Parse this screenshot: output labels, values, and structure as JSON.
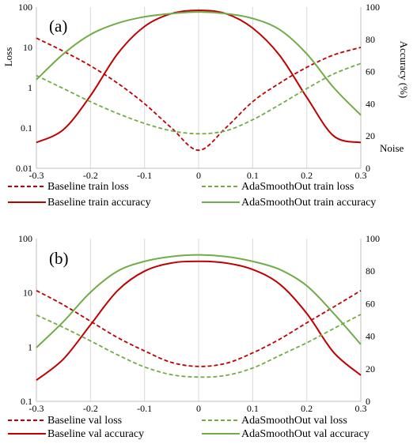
{
  "chart_data": [
    {
      "type": "line",
      "panel_label": "(a)",
      "ylabel_left": "Loss",
      "ylabel_right": "Accuracy (%)",
      "xlabel": "Noise",
      "x_ticks": [
        "-0.3",
        "-0.2",
        "-0.1",
        "0",
        "0.1",
        "0.2",
        "0.3"
      ],
      "y_left_ticks": [
        "0.01",
        "0.1",
        "1",
        "10",
        "100"
      ],
      "y_right_ticks": [
        "0",
        "20",
        "40",
        "60",
        "80",
        "100"
      ],
      "xlim": [
        -0.3,
        0.3
      ],
      "ylim_left": [
        0.01,
        100
      ],
      "ylim_right": [
        0,
        100
      ],
      "y_left_scale": "log",
      "grid": "vertical",
      "legend_position": "bottom",
      "x": [
        -0.3,
        -0.25,
        -0.2,
        -0.15,
        -0.1,
        -0.05,
        0,
        0.05,
        0.1,
        0.15,
        0.2,
        0.25,
        0.3
      ],
      "series": [
        {
          "name": "Baseline train loss",
          "axis": "left",
          "style": "dashed",
          "color": "#c00000",
          "values": [
            17,
            8,
            3.5,
            1.3,
            0.4,
            0.1,
            0.028,
            0.1,
            0.45,
            1.3,
            3.2,
            6.5,
            10
          ]
        },
        {
          "name": "Baseline train accuracy",
          "axis": "right",
          "style": "solid",
          "color": "#c00000",
          "values": [
            16,
            24,
            45,
            71,
            88,
            96,
            98,
            96,
            87,
            70,
            44,
            20,
            16
          ]
        },
        {
          "name": "AdaSmoothOut train loss",
          "axis": "left",
          "style": "dashed",
          "color": "#70ad47",
          "values": [
            2,
            0.95,
            0.45,
            0.23,
            0.13,
            0.085,
            0.072,
            0.085,
            0.16,
            0.38,
            0.95,
            2.2,
            4
          ]
        },
        {
          "name": "AdaSmoothOut train accuracy",
          "axis": "right",
          "style": "solid",
          "color": "#70ad47",
          "values": [
            55,
            71,
            83,
            90,
            94,
            96,
            97,
            96,
            93,
            86,
            71,
            50,
            33
          ]
        }
      ]
    },
    {
      "type": "line",
      "panel_label": "(b)",
      "x_ticks": [
        "-0.3",
        "-0.2",
        "-0.1",
        "0",
        "0.1",
        "0.2",
        "0.3"
      ],
      "y_left_ticks": [
        "0.1",
        "1",
        "10",
        "100"
      ],
      "y_right_ticks": [
        "0",
        "20",
        "40",
        "60",
        "80",
        "100"
      ],
      "xlim": [
        -0.3,
        0.3
      ],
      "ylim_left": [
        0.1,
        100
      ],
      "ylim_right": [
        0,
        100
      ],
      "y_left_scale": "log",
      "grid": "vertical",
      "legend_position": "bottom",
      "x": [
        -0.3,
        -0.25,
        -0.2,
        -0.15,
        -0.1,
        -0.05,
        0,
        0.05,
        0.1,
        0.15,
        0.2,
        0.25,
        0.3
      ],
      "series": [
        {
          "name": "Baseline val loss",
          "axis": "left",
          "style": "dashed",
          "color": "#c00000",
          "values": [
            11,
            6,
            3,
            1.5,
            0.85,
            0.52,
            0.44,
            0.5,
            0.78,
            1.4,
            2.8,
            5.5,
            11
          ]
        },
        {
          "name": "Baseline val accuracy",
          "axis": "right",
          "style": "solid",
          "color": "#c00000",
          "values": [
            13,
            26,
            47,
            68,
            80,
            85,
            86,
            85,
            81,
            72,
            54,
            30,
            16
          ]
        },
        {
          "name": "AdaSmoothOut val loss",
          "axis": "left",
          "style": "dashed",
          "color": "#70ad47",
          "values": [
            3.9,
            2.3,
            1.3,
            0.72,
            0.43,
            0.31,
            0.28,
            0.3,
            0.41,
            0.7,
            1.2,
            2.2,
            4
          ]
        },
        {
          "name": "AdaSmoothOut val accuracy",
          "axis": "right",
          "style": "solid",
          "color": "#70ad47",
          "values": [
            33,
            49,
            67,
            80,
            86,
            89,
            90,
            89,
            86,
            81,
            71,
            54,
            35
          ]
        }
      ]
    }
  ]
}
